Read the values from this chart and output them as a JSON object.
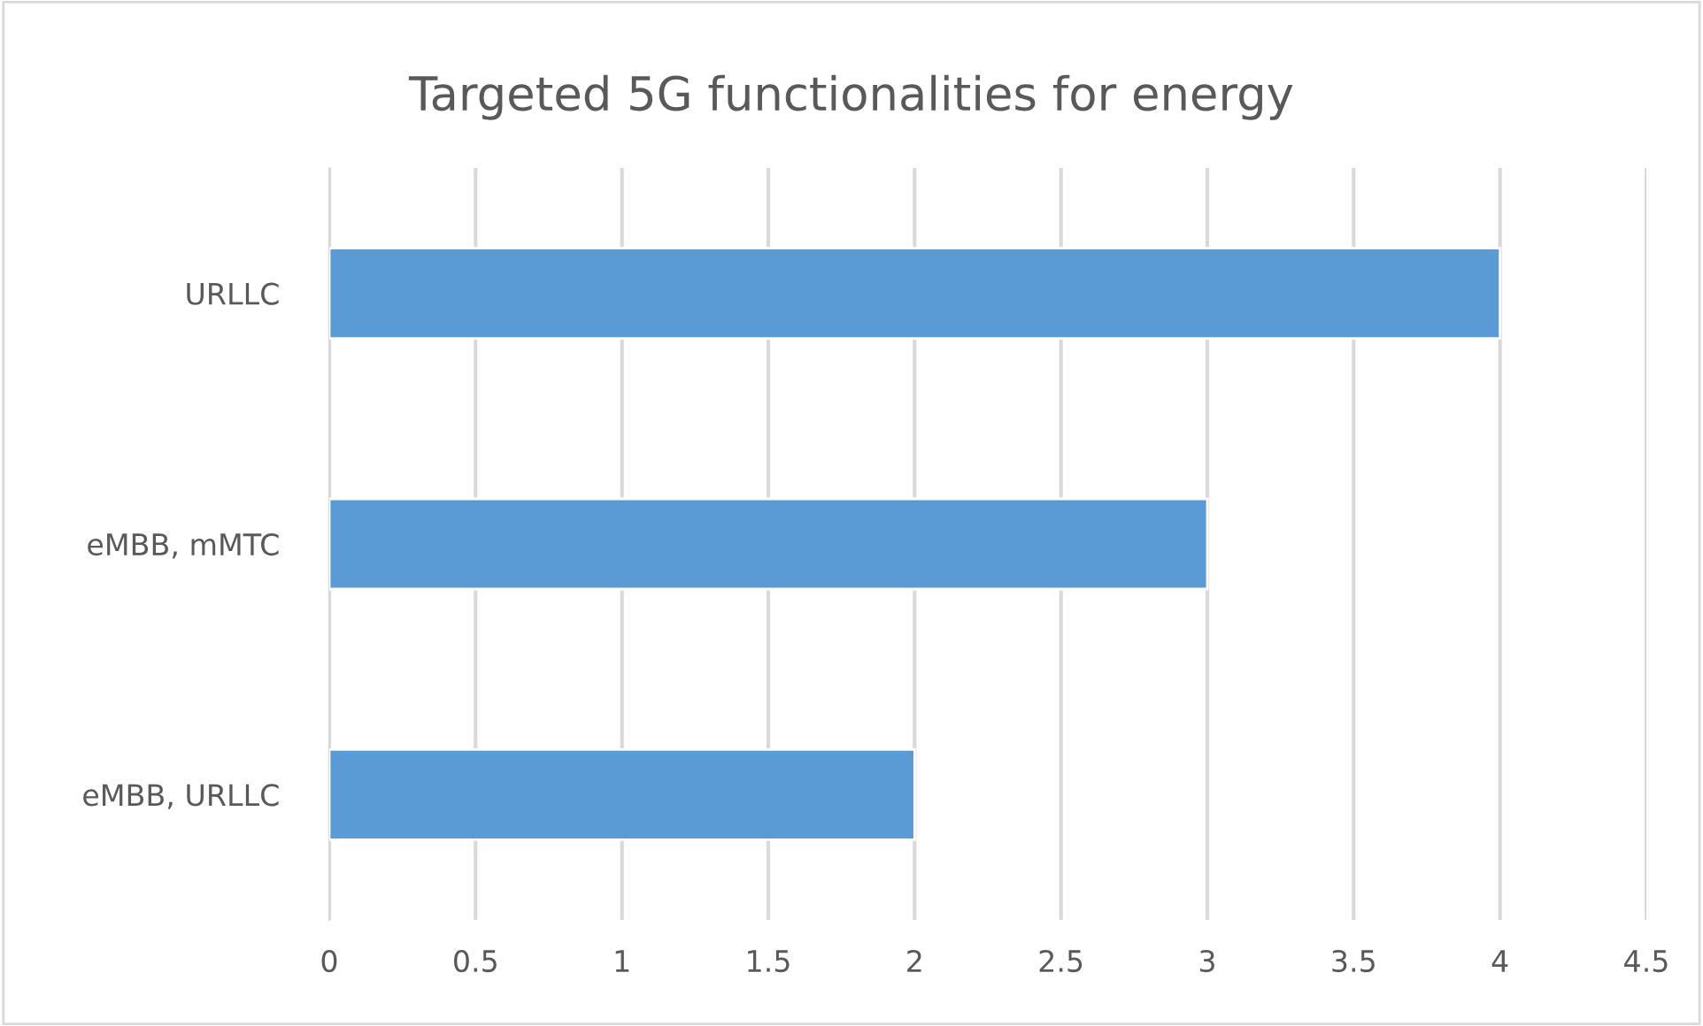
{
  "chart_data": {
    "type": "bar",
    "orientation": "horizontal",
    "title": "Targeted 5G functionalities for energy",
    "categories": [
      "URLLC",
      "eMBB, mMTC",
      "eMBB, URLLC"
    ],
    "values": [
      4,
      3,
      2
    ],
    "color": "#5b9bd5",
    "xlim": [
      0,
      4.5
    ],
    "xticks": [
      0,
      0.5,
      1,
      1.5,
      2,
      2.5,
      3,
      3.5,
      4,
      4.5
    ],
    "grid": "x"
  }
}
